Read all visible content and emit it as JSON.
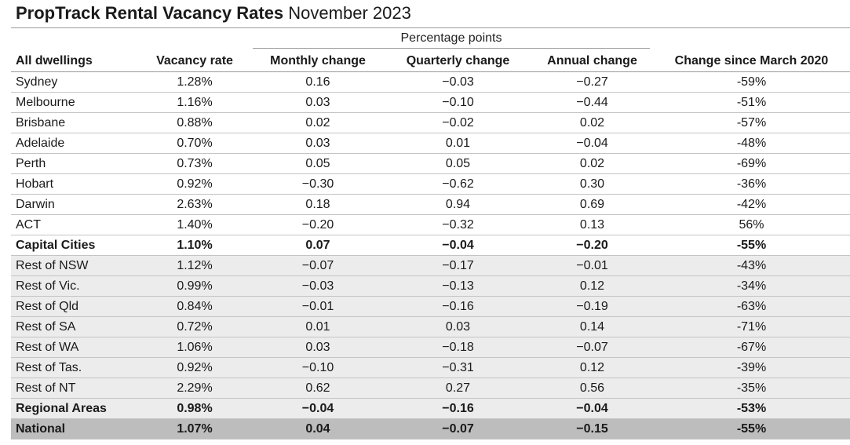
{
  "title": {
    "bold": "PropTrack Rental Vacancy Rates",
    "normal": " November 2023"
  },
  "group_header": "Percentage points",
  "columns": [
    "All dwellings",
    "Vacancy rate",
    "Monthly change",
    "Quarterly change",
    "Annual change",
    "Change since March 2020"
  ],
  "rows": [
    {
      "cells": [
        "Sydney",
        "1.28%",
        "0.16",
        "−0.03",
        "−0.27",
        "-59%"
      ],
      "style": "normal"
    },
    {
      "cells": [
        "Melbourne",
        "1.16%",
        "0.03",
        "−0.10",
        "−0.44",
        "-51%"
      ],
      "style": "normal"
    },
    {
      "cells": [
        "Brisbane",
        "0.88%",
        "0.02",
        "−0.02",
        "0.02",
        "-57%"
      ],
      "style": "normal"
    },
    {
      "cells": [
        "Adelaide",
        "0.70%",
        "0.03",
        "0.01",
        "−0.04",
        "-48%"
      ],
      "style": "normal"
    },
    {
      "cells": [
        "Perth",
        "0.73%",
        "0.05",
        "0.05",
        "0.02",
        "-69%"
      ],
      "style": "normal"
    },
    {
      "cells": [
        "Hobart",
        "0.92%",
        "−0.30",
        "−0.62",
        "0.30",
        "-36%"
      ],
      "style": "normal"
    },
    {
      "cells": [
        "Darwin",
        "2.63%",
        "0.18",
        "0.94",
        "0.69",
        "-42%"
      ],
      "style": "normal"
    },
    {
      "cells": [
        "ACT",
        "1.40%",
        "−0.20",
        "−0.32",
        "0.13",
        "56%"
      ],
      "style": "normal"
    },
    {
      "cells": [
        "Capital Cities",
        "1.10%",
        "0.07",
        "−0.04",
        "−0.20",
        "-55%"
      ],
      "style": "bold"
    },
    {
      "cells": [
        "Rest of NSW",
        "1.12%",
        "−0.07",
        "−0.17",
        "−0.01",
        "-43%"
      ],
      "style": "shade"
    },
    {
      "cells": [
        "Rest of Vic.",
        "0.99%",
        "−0.03",
        "−0.13",
        "0.12",
        "-34%"
      ],
      "style": "shade"
    },
    {
      "cells": [
        "Rest of Qld",
        "0.84%",
        "−0.01",
        "−0.16",
        "−0.19",
        "-63%"
      ],
      "style": "shade"
    },
    {
      "cells": [
        "Rest of SA",
        "0.72%",
        "0.01",
        "0.03",
        "0.14",
        "-71%"
      ],
      "style": "shade"
    },
    {
      "cells": [
        "Rest of WA",
        "1.06%",
        "0.03",
        "−0.18",
        "−0.07",
        "-67%"
      ],
      "style": "shade"
    },
    {
      "cells": [
        "Rest of Tas.",
        "0.92%",
        "−0.10",
        "−0.31",
        "0.12",
        "-39%"
      ],
      "style": "shade"
    },
    {
      "cells": [
        "Rest of NT",
        "2.29%",
        "0.62",
        "0.27",
        "0.56",
        "-35%"
      ],
      "style": "shade"
    },
    {
      "cells": [
        "Regional Areas",
        "0.98%",
        "−0.04",
        "−0.16",
        "−0.04",
        "-53%"
      ],
      "style": "shade bold"
    },
    {
      "cells": [
        "National",
        "1.07%",
        "0.04",
        "−0.07",
        "−0.15",
        "-55%"
      ],
      "style": "national bold"
    }
  ]
}
